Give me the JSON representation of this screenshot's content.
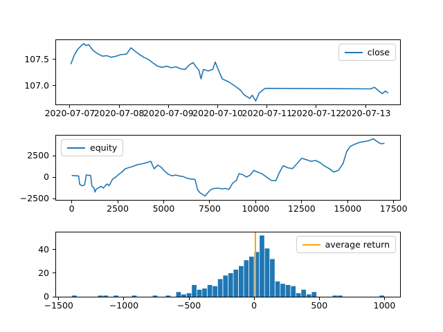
{
  "figure": {
    "background": "#ffffff"
  },
  "colors": {
    "series_blue": "#1f77b4",
    "vline_orange": "#ffa500",
    "legend_border": "#cccccc",
    "axis_text": "#000000"
  },
  "chart_data": [
    {
      "type": "line",
      "name": "close-price-chart",
      "legend": {
        "label": "close",
        "position": "top-right",
        "color": "#1f77b4"
      },
      "xlim": [
        -0.28,
        6.7
      ],
      "ylim": [
        106.645,
        107.865
      ],
      "grid": false,
      "x_ticks": {
        "values": [
          0,
          1,
          2,
          3,
          4,
          5,
          6
        ],
        "labels": [
          "2020-07-07",
          "2020-07-08",
          "2020-07-09",
          "2020-07-10",
          "2020-07-11",
          "2020-07-12",
          "2020-07-13"
        ]
      },
      "y_ticks": {
        "values": [
          107.0,
          107.5
        ],
        "labels": [
          "107.0",
          "107.5"
        ]
      },
      "series": [
        {
          "name": "close",
          "color": "#1f77b4",
          "x": [
            0.02,
            0.09,
            0.16,
            0.22,
            0.28,
            0.33,
            0.38,
            0.47,
            0.56,
            0.66,
            0.75,
            0.84,
            0.94,
            1.03,
            1.15,
            1.24,
            1.33,
            1.4,
            1.5,
            1.59,
            1.69,
            1.78,
            1.87,
            1.97,
            2.06,
            2.15,
            2.25,
            2.34,
            2.43,
            2.5,
            2.56,
            2.62,
            2.66,
            2.71,
            2.81,
            2.9,
            2.95,
            3.0,
            3.09,
            3.23,
            3.37,
            3.47,
            3.52,
            3.58,
            3.65,
            3.7,
            3.77,
            3.84,
            3.93,
            3.97,
            6.1,
            6.18,
            6.27,
            6.34,
            6.4,
            6.46
          ],
          "y": [
            107.41,
            107.58,
            107.69,
            107.75,
            107.8,
            107.76,
            107.78,
            107.67,
            107.61,
            107.56,
            107.57,
            107.54,
            107.56,
            107.59,
            107.6,
            107.72,
            107.65,
            107.6,
            107.54,
            107.5,
            107.43,
            107.37,
            107.35,
            107.37,
            107.34,
            107.36,
            107.32,
            107.31,
            107.4,
            107.44,
            107.36,
            107.29,
            107.13,
            107.31,
            107.28,
            107.31,
            107.45,
            107.33,
            107.13,
            107.07,
            106.98,
            106.91,
            106.84,
            106.8,
            106.76,
            106.82,
            106.71,
            106.86,
            106.93,
            106.95,
            106.94,
            106.97,
            106.9,
            106.85,
            106.9,
            106.86
          ]
        }
      ]
    },
    {
      "type": "line",
      "name": "equity-chart",
      "legend": {
        "label": "equity",
        "position": "top-left",
        "color": "#1f77b4"
      },
      "xlim": [
        -850,
        17850
      ],
      "ylim": [
        -2640,
        4850
      ],
      "grid": false,
      "x_ticks": {
        "values": [
          0,
          2500,
          5000,
          7500,
          10000,
          12500,
          15000,
          17500
        ],
        "labels": [
          "0",
          "2500",
          "5000",
          "7500",
          "10000",
          "12500",
          "15000",
          "17500"
        ]
      },
      "y_ticks": {
        "values": [
          -2500,
          0,
          2500
        ],
        "labels": [
          "−2500",
          "0",
          "2500"
        ]
      },
      "series": [
        {
          "name": "equity",
          "color": "#1f77b4",
          "x": [
            0,
            380,
            430,
            560,
            700,
            790,
            1030,
            1100,
            1200,
            1270,
            1340,
            1410,
            1600,
            1720,
            1910,
            2040,
            2220,
            2410,
            2540,
            2720,
            2910,
            3100,
            3300,
            3550,
            3800,
            4050,
            4300,
            4480,
            4670,
            4850,
            5050,
            5250,
            5450,
            5650,
            5850,
            6050,
            6250,
            6450,
            6700,
            6850,
            7000,
            7250,
            7400,
            7550,
            7750,
            7950,
            8150,
            8350,
            8550,
            8750,
            8950,
            9100,
            9300,
            9500,
            9700,
            9900,
            10100,
            10350,
            10600,
            10850,
            11100,
            11300,
            11500,
            11750,
            12000,
            12250,
            12500,
            12750,
            13000,
            13250,
            13500,
            13750,
            14000,
            14250,
            14500,
            14750,
            14950,
            15150,
            15400,
            15650,
            15900,
            16150,
            16400,
            16600,
            16800,
            17000
          ],
          "y": [
            200,
            150,
            -800,
            -1000,
            -900,
            250,
            200,
            -1050,
            -1200,
            -1725,
            -1350,
            -1300,
            -1050,
            -1260,
            -790,
            -970,
            -220,
            45,
            310,
            580,
            985,
            1115,
            1250,
            1450,
            1550,
            1680,
            1850,
            980,
            1400,
            1200,
            700,
            350,
            160,
            250,
            150,
            80,
            -100,
            -200,
            -250,
            -1500,
            -1860,
            -2180,
            -1800,
            -1460,
            -1300,
            -1270,
            -1350,
            -1300,
            -1420,
            -700,
            -380,
            420,
            300,
            20,
            250,
            800,
            600,
            400,
            0,
            -380,
            -400,
            600,
            1350,
            1100,
            1000,
            1600,
            2200,
            2050,
            1850,
            1950,
            1700,
            1300,
            1000,
            600,
            800,
            1600,
            3000,
            3600,
            3850,
            4050,
            4150,
            4250,
            4480,
            4150,
            3900,
            3940
          ]
        }
      ]
    },
    {
      "type": "histogram",
      "name": "returns-histogram",
      "legend": {
        "label": "average return",
        "position": "top-right",
        "color": "#ffa500"
      },
      "xlim": [
        -1520,
        1120
      ],
      "ylim": [
        0,
        54.6
      ],
      "grid": false,
      "bar_color": "#1f77b4",
      "bin_width": 40,
      "x_ticks": {
        "values": [
          -1500,
          -1000,
          -500,
          0,
          500,
          1000
        ],
        "labels": [
          "−1500",
          "−1000",
          "−500",
          "0",
          "500",
          "1000"
        ]
      },
      "y_ticks": {
        "values": [
          0,
          20,
          40
        ],
        "labels": [
          "0",
          "20",
          "40"
        ]
      },
      "bars": {
        "centers": [
          -1380,
          -1180,
          -1140,
          -1060,
          -920,
          -760,
          -660,
          -580,
          -540,
          -500,
          -460,
          -420,
          -380,
          -340,
          -300,
          -260,
          -220,
          -180,
          -140,
          -100,
          -60,
          -20,
          20,
          60,
          100,
          140,
          180,
          220,
          260,
          300,
          340,
          380,
          420,
          460,
          620,
          660,
          980
        ],
        "heights": [
          1,
          1,
          1,
          1,
          1,
          1,
          1,
          4,
          2,
          3,
          10,
          6,
          7,
          10,
          9,
          15,
          18,
          20,
          23,
          26,
          31,
          34,
          38,
          52,
          41,
          32,
          13,
          11,
          10,
          9,
          3,
          6,
          2,
          4,
          1,
          1,
          1
        ]
      },
      "vline": {
        "x": 10,
        "label": "average return",
        "color": "#ffa500"
      }
    }
  ]
}
